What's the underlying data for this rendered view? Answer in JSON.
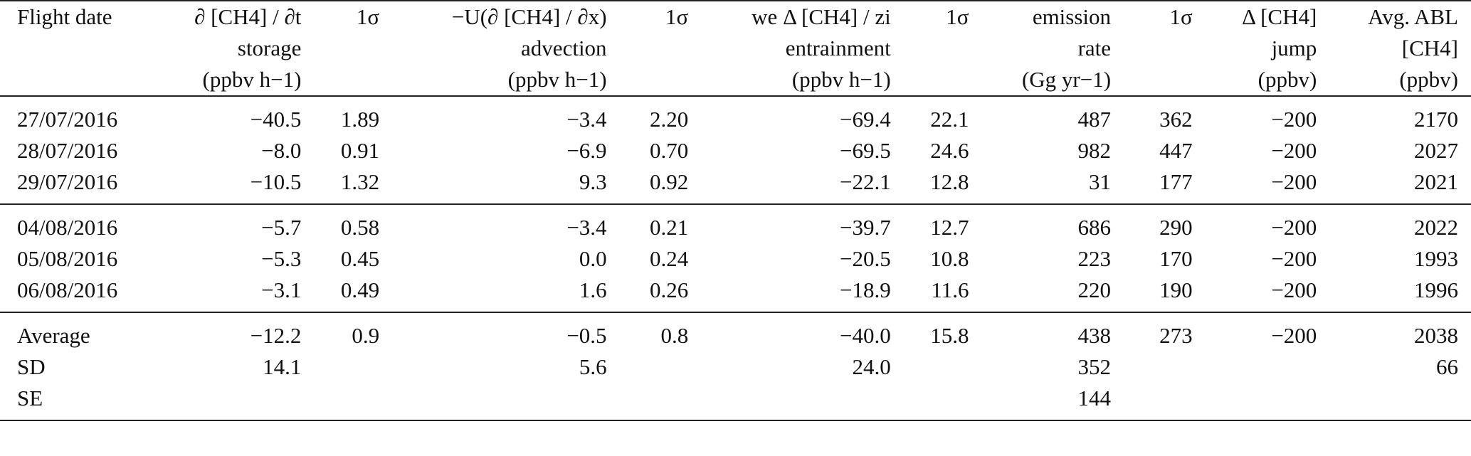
{
  "table": {
    "headers": [
      [
        "Flight date"
      ],
      [
        "∂ [CH4] / ∂t",
        "storage",
        "(ppbv h−1)"
      ],
      [
        "1σ"
      ],
      [
        "−U(∂ [CH4] / ∂x)",
        "advection",
        "(ppbv h−1)"
      ],
      [
        "1σ"
      ],
      [
        "we Δ [CH4] / zi",
        "entrainment",
        "(ppbv h−1)"
      ],
      [
        "1σ"
      ],
      [
        "emission",
        "rate",
        "(Gg yr−1)"
      ],
      [
        "1σ"
      ],
      [
        "Δ [CH4]",
        "jump",
        "(ppbv)"
      ],
      [
        "Avg. ABL",
        "[CH4]",
        "(ppbv)"
      ]
    ],
    "groups": [
      [
        [
          "27/07/2016",
          "−40.5",
          "1.89",
          "−3.4",
          "2.20",
          "−69.4",
          "22.1",
          "487",
          "362",
          "−200",
          "2170"
        ],
        [
          "28/07/2016",
          "−8.0",
          "0.91",
          "−6.9",
          "0.70",
          "−69.5",
          "24.6",
          "982",
          "447",
          "−200",
          "2027"
        ],
        [
          "29/07/2016",
          "−10.5",
          "1.32",
          "9.3",
          "0.92",
          "−22.1",
          "12.8",
          "31",
          "177",
          "−200",
          "2021"
        ]
      ],
      [
        [
          "04/08/2016",
          "−5.7",
          "0.58",
          "−3.4",
          "0.21",
          "−39.7",
          "12.7",
          "686",
          "290",
          "−200",
          "2022"
        ],
        [
          "05/08/2016",
          "−5.3",
          "0.45",
          "0.0",
          "0.24",
          "−20.5",
          "10.8",
          "223",
          "170",
          "−200",
          "1993"
        ],
        [
          "06/08/2016",
          "−3.1",
          "0.49",
          "1.6",
          "0.26",
          "−18.9",
          "11.6",
          "220",
          "190",
          "−200",
          "1996"
        ]
      ],
      [
        [
          "Average",
          "−12.2",
          "0.9",
          "−0.5",
          "0.8",
          "−40.0",
          "15.8",
          "438",
          "273",
          "−200",
          "2038"
        ],
        [
          "SD",
          "14.1",
          "",
          "5.6",
          "",
          "24.0",
          "",
          "352",
          "",
          "",
          "66"
        ],
        [
          "SE",
          "",
          "",
          "",
          "",
          "",
          "",
          "144",
          "",
          "",
          ""
        ]
      ]
    ]
  }
}
